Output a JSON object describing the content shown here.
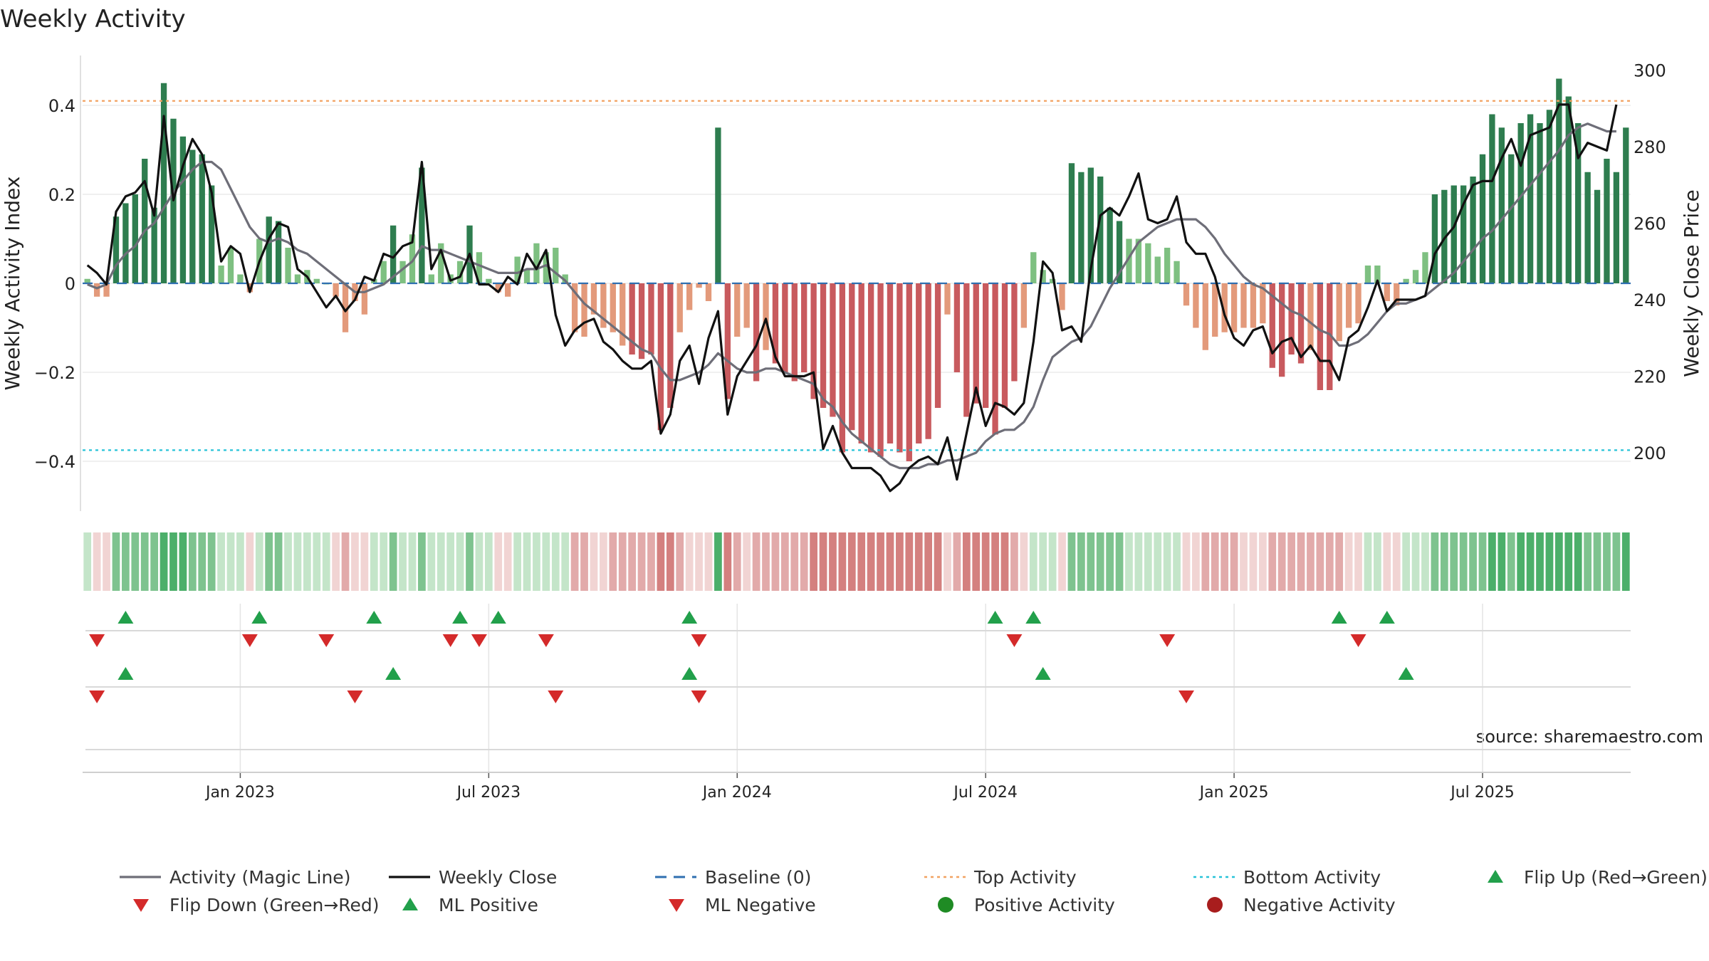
{
  "chart_data": {
    "type": "bar",
    "title": "Weekly Activity",
    "source": "source: sharemaestro.com",
    "ylabel": "Weekly Activity Index",
    "y2label": "Weekly Close Price",
    "ylim": [
      -0.5,
      0.5
    ],
    "y2lim": [
      186,
      301
    ],
    "yticks": [
      {
        "v": 0.4,
        "label": "0.4"
      },
      {
        "v": 0.2,
        "label": "0.2"
      },
      {
        "v": 0,
        "label": "0"
      },
      {
        "v": -0.2,
        "label": "−0.2"
      },
      {
        "v": -0.4,
        "label": "−0.4"
      }
    ],
    "y2ticks": [
      {
        "v": 300,
        "label": "300"
      },
      {
        "v": 280,
        "label": "280"
      },
      {
        "v": 260,
        "label": "260"
      },
      {
        "v": 240,
        "label": "240"
      },
      {
        "v": 220,
        "label": "220"
      },
      {
        "v": 200,
        "label": "200"
      }
    ],
    "xticks": [
      {
        "week": 16,
        "label": "Jan 2023"
      },
      {
        "week": 42,
        "label": "Jul 2023"
      },
      {
        "week": 68,
        "label": "Jan 2024"
      },
      {
        "week": 94,
        "label": "Jul 2024"
      },
      {
        "week": 120,
        "label": "Jan 2025"
      },
      {
        "week": 146,
        "label": "Jul 2025"
      }
    ],
    "top_activity": 0.41,
    "bottom_activity": -0.375,
    "activity": [
      0.01,
      -0.03,
      -0.03,
      0.15,
      0.18,
      0.2,
      0.28,
      0.17,
      0.45,
      0.37,
      0.33,
      0.3,
      0.29,
      0.22,
      0.04,
      0.08,
      0.02,
      -0.02,
      0.1,
      0.15,
      0.14,
      0.08,
      0.02,
      0.03,
      0.01,
      0,
      -0.03,
      -0.11,
      -0.04,
      -0.07,
      0.01,
      0.05,
      0.13,
      0.05,
      0.11,
      0.26,
      0.02,
      0.09,
      0.02,
      0.05,
      0.13,
      0.07,
      0.01,
      -0.02,
      -0.03,
      0.06,
      0.03,
      0.09,
      0.07,
      0.08,
      0.02,
      -0.11,
      -0.12,
      -0.07,
      -0.1,
      -0.11,
      -0.14,
      -0.16,
      -0.17,
      -0.16,
      -0.33,
      -0.28,
      -0.11,
      -0.06,
      -0.01,
      -0.04,
      0.35,
      -0.26,
      -0.12,
      -0.1,
      -0.22,
      -0.15,
      -0.18,
      -0.2,
      -0.22,
      -0.2,
      -0.26,
      -0.28,
      -0.3,
      -0.38,
      -0.33,
      -0.36,
      -0.38,
      -0.39,
      -0.36,
      -0.38,
      -0.4,
      -0.36,
      -0.35,
      -0.28,
      -0.07,
      -0.2,
      -0.3,
      -0.27,
      -0.28,
      -0.34,
      -0.28,
      -0.22,
      -0.1,
      0.07,
      0.03,
      0.01,
      -0.06,
      0.27,
      0.25,
      0.26,
      0.24,
      0.17,
      0.14,
      0.1,
      0.1,
      0.09,
      0.06,
      0.08,
      0.05,
      -0.05,
      -0.1,
      -0.15,
      -0.12,
      -0.11,
      -0.11,
      -0.1,
      -0.1,
      -0.09,
      -0.19,
      -0.21,
      -0.16,
      -0.18,
      -0.15,
      -0.24,
      -0.24,
      -0.13,
      -0.1,
      -0.09,
      0.04,
      0.04,
      -0.04,
      -0.05,
      0.01,
      0.03,
      0.07,
      0.2,
      0.21,
      0.22,
      0.22,
      0.24,
      0.29,
      0.38,
      0.35,
      0.29,
      0.36,
      0.38,
      0.36,
      0.39,
      0.46,
      0.42,
      0.36,
      0.25,
      0.21,
      0.28,
      0.25,
      0.35
    ],
    "weekly_close": [
      249,
      247,
      244,
      263,
      267,
      268,
      271,
      262,
      288,
      266,
      275,
      282,
      278,
      268,
      250,
      254,
      252,
      242,
      250,
      256,
      260,
      259,
      248,
      246,
      242,
      238,
      241,
      237,
      240,
      246,
      245,
      252,
      251,
      254,
      255,
      276,
      248,
      253,
      245,
      246,
      252,
      244,
      244,
      242,
      246,
      244,
      252,
      248,
      253,
      236,
      228,
      232,
      234,
      235,
      229,
      227,
      224,
      222,
      222,
      224,
      205,
      210,
      224,
      228,
      218,
      230,
      237,
      210,
      220,
      224,
      228,
      235,
      225,
      220,
      220,
      220,
      221,
      201,
      207,
      200,
      196,
      196,
      196,
      194,
      190,
      192,
      196,
      198,
      199,
      197,
      204,
      193,
      205,
      217,
      207,
      213,
      212,
      210,
      213,
      229,
      250,
      247,
      232,
      233,
      229,
      248,
      262,
      264,
      262,
      267,
      273,
      261,
      260,
      261,
      267,
      255,
      252,
      252,
      246,
      236,
      230,
      228,
      232,
      233,
      226,
      229,
      230,
      225,
      228,
      224,
      224,
      219,
      230,
      232,
      238,
      245,
      237,
      240,
      240,
      240,
      241,
      252,
      256,
      259,
      265,
      270,
      271,
      271,
      277,
      282,
      275,
      283,
      284,
      285,
      291,
      291,
      277,
      281,
      280,
      279,
      291
    ],
    "magic_line": [
      244,
      243,
      244,
      249,
      252,
      254,
      258,
      260,
      264,
      268,
      271,
      274,
      276,
      276,
      274,
      269,
      264,
      259,
      256,
      255,
      256,
      255,
      253,
      252,
      250,
      248,
      246,
      244,
      242,
      242,
      243,
      244,
      246,
      248,
      250,
      254,
      253,
      253,
      252,
      251,
      250,
      249,
      248,
      247,
      247,
      247,
      248,
      248,
      249,
      247,
      245,
      242,
      239,
      237,
      235,
      233,
      231,
      229,
      227,
      226,
      222,
      219,
      219,
      220,
      221,
      223,
      226,
      224,
      222,
      221,
      221,
      222,
      222,
      221,
      220,
      219,
      218,
      214,
      212,
      208,
      205,
      203,
      201,
      199,
      197,
      196,
      196,
      196,
      197,
      197,
      198,
      198,
      199,
      200,
      203,
      205,
      206,
      206,
      208,
      212,
      219,
      225,
      227,
      229,
      230,
      233,
      238,
      243,
      247,
      251,
      255,
      257,
      259,
      260,
      261,
      261,
      261,
      259,
      256,
      252,
      249,
      246,
      244,
      243,
      241,
      239,
      237,
      236,
      234,
      232,
      231,
      228,
      228,
      229,
      231,
      234,
      237,
      239,
      239,
      240,
      241,
      243,
      245,
      247,
      250,
      253,
      256,
      258,
      261,
      264,
      267,
      270,
      273,
      276,
      279,
      283,
      285,
      286,
      285,
      284,
      284
    ],
    "flip_up_weeks": [
      4,
      18,
      30,
      39,
      43,
      63,
      95,
      99,
      131,
      136
    ],
    "flip_down_weeks": [
      1,
      17,
      25,
      38,
      41,
      48,
      64,
      97,
      113,
      133
    ],
    "ml_positive_weeks": [
      4,
      32,
      63,
      100,
      138
    ],
    "ml_negative_weeks": [
      1,
      28,
      49,
      64,
      115
    ],
    "legend": [
      {
        "label": "Activity (Magic Line)",
        "kind": "line",
        "color": "#6e6e78"
      },
      {
        "label": "Weekly Close",
        "kind": "line",
        "color": "#111111"
      },
      {
        "label": "Baseline (0)",
        "kind": "dash",
        "color": "#2f6fb0"
      },
      {
        "label": "Top Activity",
        "kind": "dot",
        "color": "#f2a261"
      },
      {
        "label": "Bottom Activity",
        "kind": "dot",
        "color": "#27c3d8"
      },
      {
        "label": "Flip Up (Red→Green)",
        "kind": "tri-up",
        "color": "#22a04b"
      },
      {
        "label": "Flip Down (Green→Red)",
        "kind": "tri-down",
        "color": "#d42a2a"
      },
      {
        "label": "ML Positive",
        "kind": "tri-up",
        "color": "#22a04b"
      },
      {
        "label": "ML Negative",
        "kind": "tri-down",
        "color": "#d42a2a"
      },
      {
        "label": "Positive Activity",
        "kind": "circle",
        "color": "#1f8b24"
      },
      {
        "label": "Negative Activity",
        "kind": "circle",
        "color": "#a81d1d"
      }
    ]
  }
}
